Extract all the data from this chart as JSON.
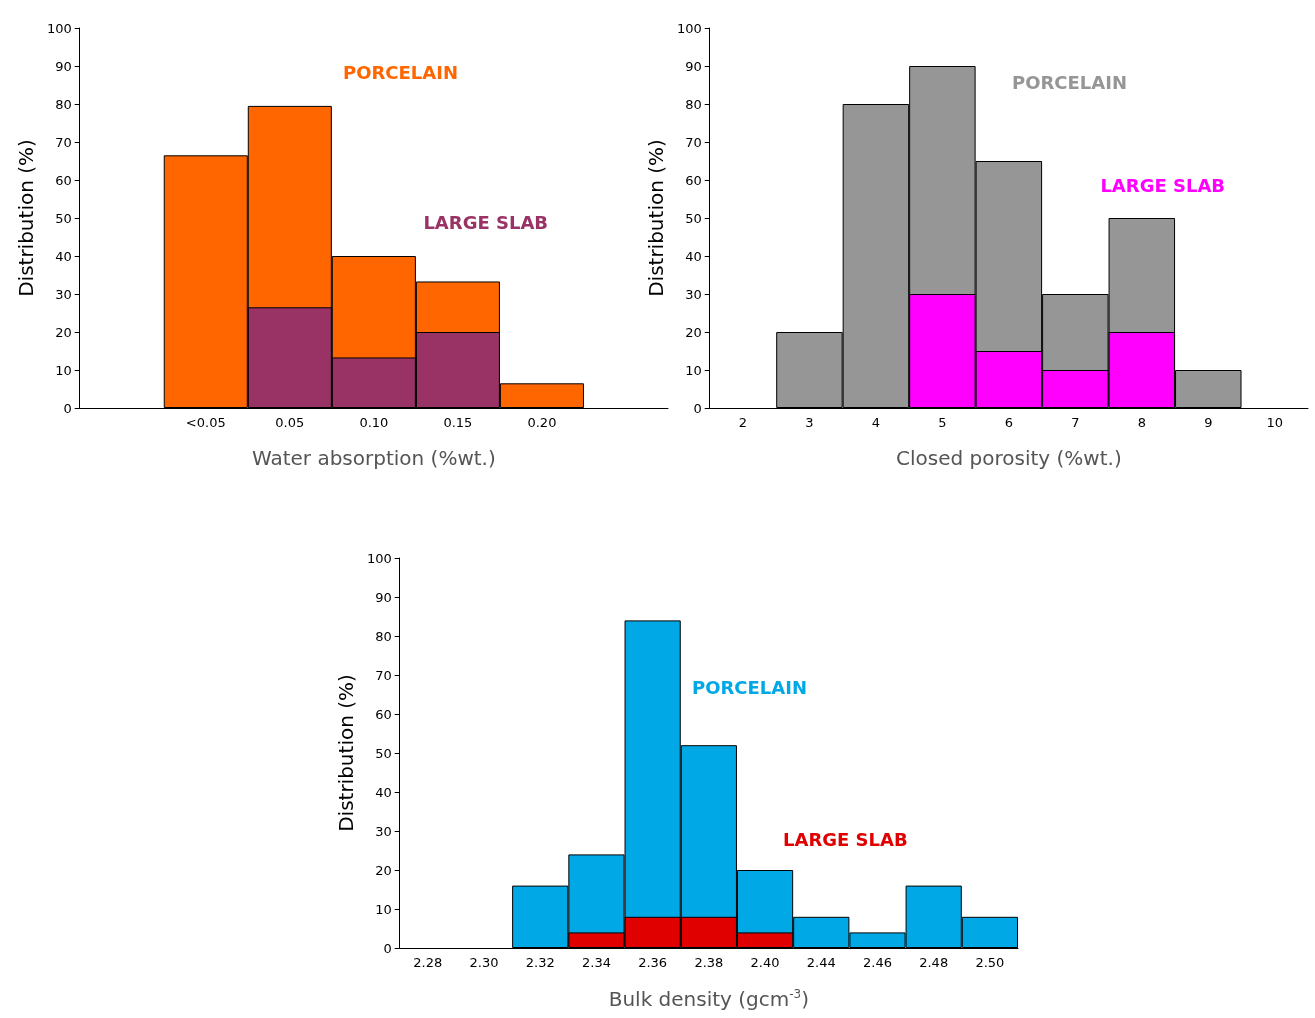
{
  "chart_data": [
    {
      "type": "bar",
      "xlabel": "Water absorption (%wt.)",
      "ylabel": "Distribution (%)",
      "categories": [
        null,
        "<0.05",
        "0.05",
        "0.10",
        "0.15",
        "0.20",
        null
      ],
      "ylim": [
        0,
        100
      ],
      "yticks": [
        0,
        10,
        20,
        30,
        40,
        50,
        60,
        70,
        80,
        90,
        100
      ],
      "grid": false,
      "legend": false,
      "series": [
        {
          "name": "PORCELAIN",
          "color": "#ff6600",
          "values": [
            null,
            66.5,
            79.5,
            40,
            33.3,
            6.5,
            null
          ]
        },
        {
          "name": "LARGE SLAB",
          "color": "#993366",
          "values": [
            null,
            null,
            26.5,
            13.3,
            20,
            null,
            null
          ]
        }
      ]
    },
    {
      "type": "bar",
      "xlabel": "Closed porosity (%wt.)",
      "ylabel": "Distribution (%)",
      "categories": [
        "2",
        "3",
        "4",
        "5",
        "6",
        "7",
        "8",
        "9",
        "10"
      ],
      "ylim": [
        0,
        100
      ],
      "yticks": [
        0,
        10,
        20,
        30,
        40,
        50,
        60,
        70,
        80,
        90,
        100
      ],
      "grid": false,
      "legend": false,
      "series": [
        {
          "name": "PORCELAIN",
          "color": "#969696",
          "values": [
            null,
            20,
            80,
            90,
            65,
            30,
            50,
            10,
            null
          ]
        },
        {
          "name": "LARGE SLAB",
          "color": "#ff00ff",
          "values": [
            null,
            null,
            null,
            30,
            15,
            10,
            20,
            null,
            null
          ]
        }
      ]
    },
    {
      "type": "bar",
      "xlabel": "Bulk density (gcm$^{-3}$)",
      "ylabel": "Distribution (%)",
      "categories": [
        "2.28",
        "2.30",
        "2.32",
        "2.34",
        "2.36",
        "2.38",
        "2.40",
        "2.44",
        "2.46",
        "2.48",
        "2.50"
      ],
      "ylim": [
        0,
        100
      ],
      "yticks": [
        0,
        10,
        20,
        30,
        40,
        50,
        60,
        70,
        80,
        90,
        100
      ],
      "grid": false,
      "legend": false,
      "series": [
        {
          "name": "PORCELAIN",
          "color": "#00a8e6",
          "values": [
            null,
            null,
            16,
            24,
            84,
            52,
            20,
            8,
            4,
            16,
            8
          ]
        },
        {
          "name": "LARGE SLAB",
          "color": "#e00000",
          "values": [
            null,
            null,
            null,
            4,
            8,
            8,
            4,
            null,
            null,
            null,
            null
          ]
        }
      ]
    }
  ]
}
